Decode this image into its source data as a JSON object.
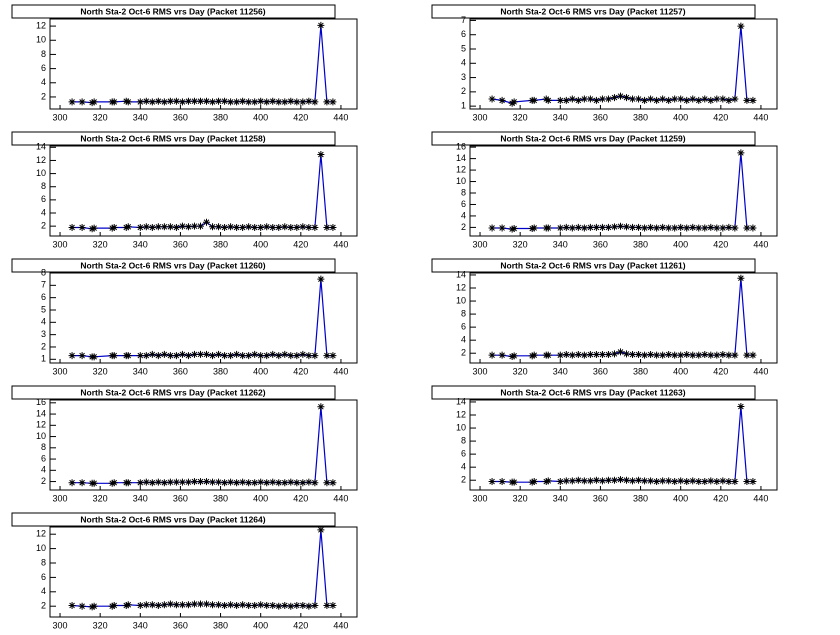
{
  "chart_data": [
    {
      "type": "line",
      "title": "North Sta-2 Oct-6 RMS vrs Day (Packet 11256)",
      "line_color": "#0000cc",
      "marker_color": "#000000",
      "x": [
        306,
        311,
        316,
        317,
        326,
        327,
        333,
        334,
        340,
        343,
        346,
        349,
        352,
        355,
        358,
        361,
        364,
        367,
        370,
        373,
        376,
        379,
        382,
        385,
        388,
        391,
        394,
        397,
        400,
        403,
        406,
        409,
        412,
        415,
        418,
        421,
        424,
        427,
        430,
        433,
        436
      ],
      "values": [
        1.3,
        1.3,
        1.2,
        1.3,
        1.3,
        1.3,
        1.4,
        1.3,
        1.3,
        1.4,
        1.3,
        1.4,
        1.3,
        1.4,
        1.4,
        1.3,
        1.4,
        1.4,
        1.4,
        1.4,
        1.3,
        1.4,
        1.4,
        1.3,
        1.3,
        1.4,
        1.3,
        1.3,
        1.4,
        1.3,
        1.4,
        1.3,
        1.3,
        1.4,
        1.3,
        1.3,
        1.4,
        1.3,
        12.1,
        1.3,
        1.3
      ],
      "xlim": [
        295,
        448
      ],
      "xticks": [
        300,
        320,
        340,
        360,
        380,
        400,
        420,
        440
      ],
      "ylim": [
        0.3,
        13
      ],
      "yticks": [
        2,
        4,
        6,
        8,
        10,
        12
      ]
    },
    {
      "type": "line",
      "title": "North Sta-2 Oct-6 RMS vrs Day (Packet 11257)",
      "line_color": "#0000cc",
      "marker_color": "#000000",
      "x": [
        306,
        311,
        316,
        317,
        326,
        327,
        333,
        334,
        340,
        343,
        346,
        349,
        352,
        355,
        358,
        361,
        364,
        367,
        370,
        373,
        376,
        379,
        382,
        385,
        388,
        391,
        394,
        397,
        400,
        403,
        406,
        409,
        412,
        415,
        418,
        421,
        424,
        427,
        430,
        433,
        436
      ],
      "values": [
        1.5,
        1.4,
        1.2,
        1.3,
        1.4,
        1.4,
        1.5,
        1.4,
        1.4,
        1.4,
        1.5,
        1.4,
        1.5,
        1.5,
        1.4,
        1.5,
        1.5,
        1.6,
        1.7,
        1.6,
        1.5,
        1.5,
        1.4,
        1.5,
        1.4,
        1.5,
        1.4,
        1.5,
        1.5,
        1.4,
        1.5,
        1.4,
        1.5,
        1.4,
        1.5,
        1.5,
        1.4,
        1.5,
        6.6,
        1.4,
        1.4
      ],
      "xlim": [
        295,
        448
      ],
      "xticks": [
        300,
        320,
        340,
        360,
        380,
        400,
        420,
        440
      ],
      "ylim": [
        0.8,
        7.1
      ],
      "yticks": [
        1,
        2,
        3,
        4,
        5,
        6,
        7
      ]
    },
    {
      "type": "line",
      "title": "North Sta-2 Oct-6 RMS vrs Day (Packet 11258)",
      "line_color": "#0000cc",
      "marker_color": "#000000",
      "x": [
        306,
        311,
        316,
        317,
        326,
        327,
        333,
        334,
        340,
        343,
        346,
        349,
        352,
        355,
        358,
        361,
        364,
        367,
        370,
        373,
        376,
        379,
        382,
        385,
        388,
        391,
        394,
        397,
        400,
        403,
        406,
        409,
        412,
        415,
        418,
        421,
        424,
        427,
        430,
        433,
        436
      ],
      "values": [
        1.8,
        1.8,
        1.6,
        1.7,
        1.7,
        1.8,
        1.8,
        1.9,
        1.8,
        1.9,
        1.8,
        1.9,
        1.9,
        1.9,
        1.8,
        2.0,
        1.9,
        2.0,
        2.0,
        2.6,
        1.9,
        1.9,
        1.8,
        1.9,
        1.8,
        1.8,
        1.9,
        1.8,
        1.8,
        1.9,
        1.8,
        1.8,
        1.9,
        1.8,
        1.8,
        1.9,
        1.8,
        1.8,
        12.9,
        1.8,
        1.8
      ],
      "xlim": [
        295,
        448
      ],
      "xticks": [
        300,
        320,
        340,
        360,
        380,
        400,
        420,
        440
      ],
      "ylim": [
        0.5,
        14.2
      ],
      "yticks": [
        2,
        4,
        6,
        8,
        10,
        12,
        14
      ]
    },
    {
      "type": "line",
      "title": "North Sta-2 Oct-6 RMS vrs Day (Packet 11259)",
      "line_color": "#0000cc",
      "marker_color": "#000000",
      "x": [
        306,
        311,
        316,
        317,
        326,
        327,
        333,
        334,
        340,
        343,
        346,
        349,
        352,
        355,
        358,
        361,
        364,
        367,
        370,
        373,
        376,
        379,
        382,
        385,
        388,
        391,
        394,
        397,
        400,
        403,
        406,
        409,
        412,
        415,
        418,
        421,
        424,
        427,
        430,
        433,
        436
      ],
      "values": [
        1.9,
        1.9,
        1.7,
        1.8,
        1.8,
        1.9,
        1.9,
        1.9,
        1.9,
        2.0,
        1.9,
        2.0,
        1.9,
        2.0,
        2.0,
        2.0,
        2.0,
        2.1,
        2.2,
        2.1,
        2.0,
        2.0,
        1.9,
        2.0,
        1.9,
        2.0,
        1.9,
        1.9,
        2.0,
        1.9,
        2.0,
        1.9,
        1.9,
        2.0,
        1.9,
        1.9,
        2.0,
        1.9,
        15.0,
        1.9,
        1.9
      ],
      "xlim": [
        295,
        448
      ],
      "xticks": [
        300,
        320,
        340,
        360,
        380,
        400,
        420,
        440
      ],
      "ylim": [
        0.5,
        16.2
      ],
      "yticks": [
        2,
        4,
        6,
        8,
        10,
        12,
        14,
        16
      ]
    },
    {
      "type": "line",
      "title": "North Sta-2 Oct-6 RMS vrs Day (Packet 11260)",
      "line_color": "#0000cc",
      "marker_color": "#000000",
      "x": [
        306,
        311,
        316,
        317,
        326,
        327,
        333,
        334,
        340,
        343,
        346,
        349,
        352,
        355,
        358,
        361,
        364,
        367,
        370,
        373,
        376,
        379,
        382,
        385,
        388,
        391,
        394,
        397,
        400,
        403,
        406,
        409,
        412,
        415,
        418,
        421,
        424,
        427,
        430,
        433,
        436
      ],
      "values": [
        1.3,
        1.3,
        1.2,
        1.2,
        1.3,
        1.3,
        1.3,
        1.3,
        1.3,
        1.3,
        1.4,
        1.3,
        1.4,
        1.3,
        1.3,
        1.4,
        1.3,
        1.4,
        1.4,
        1.4,
        1.3,
        1.4,
        1.3,
        1.3,
        1.4,
        1.3,
        1.3,
        1.4,
        1.3,
        1.3,
        1.4,
        1.3,
        1.4,
        1.3,
        1.3,
        1.4,
        1.3,
        1.3,
        7.5,
        1.3,
        1.3
      ],
      "xlim": [
        295,
        448
      ],
      "xticks": [
        300,
        320,
        340,
        360,
        380,
        400,
        420,
        440
      ],
      "ylim": [
        0.7,
        8
      ],
      "yticks": [
        1,
        2,
        3,
        4,
        5,
        6,
        7,
        8
      ]
    },
    {
      "type": "line",
      "title": "North Sta-2 Oct-6 RMS vrs Day (Packet 11261)",
      "line_color": "#0000cc",
      "marker_color": "#000000",
      "x": [
        306,
        311,
        316,
        317,
        326,
        327,
        333,
        334,
        340,
        343,
        346,
        349,
        352,
        355,
        358,
        361,
        364,
        367,
        370,
        373,
        376,
        379,
        382,
        385,
        388,
        391,
        394,
        397,
        400,
        403,
        406,
        409,
        412,
        415,
        418,
        421,
        424,
        427,
        430,
        433,
        436
      ],
      "values": [
        1.7,
        1.7,
        1.5,
        1.6,
        1.6,
        1.7,
        1.7,
        1.7,
        1.7,
        1.8,
        1.7,
        1.8,
        1.7,
        1.8,
        1.8,
        1.8,
        1.8,
        1.9,
        2.2,
        1.9,
        1.8,
        1.8,
        1.7,
        1.8,
        1.7,
        1.7,
        1.8,
        1.7,
        1.7,
        1.8,
        1.7,
        1.7,
        1.8,
        1.7,
        1.7,
        1.8,
        1.7,
        1.7,
        13.5,
        1.7,
        1.7
      ],
      "xlim": [
        295,
        448
      ],
      "xticks": [
        300,
        320,
        340,
        360,
        380,
        400,
        420,
        440
      ],
      "ylim": [
        0.5,
        14.3
      ],
      "yticks": [
        2,
        4,
        6,
        8,
        10,
        12,
        14
      ]
    },
    {
      "type": "line",
      "title": "North Sta-2 Oct-6 RMS vrs Day (Packet 11262)",
      "line_color": "#0000cc",
      "marker_color": "#000000",
      "x": [
        306,
        311,
        316,
        317,
        326,
        327,
        333,
        334,
        340,
        343,
        346,
        349,
        352,
        355,
        358,
        361,
        364,
        367,
        370,
        373,
        376,
        379,
        382,
        385,
        388,
        391,
        394,
        397,
        400,
        403,
        406,
        409,
        412,
        415,
        418,
        421,
        424,
        427,
        430,
        433,
        436
      ],
      "values": [
        1.8,
        1.8,
        1.7,
        1.7,
        1.7,
        1.8,
        1.8,
        1.8,
        1.8,
        1.9,
        1.8,
        1.9,
        1.8,
        1.9,
        1.9,
        1.9,
        1.9,
        2.0,
        2.0,
        2.0,
        1.9,
        1.9,
        1.8,
        1.9,
        1.8,
        1.9,
        1.8,
        1.8,
        1.9,
        1.8,
        1.9,
        1.8,
        1.8,
        1.9,
        1.8,
        1.8,
        1.9,
        1.8,
        15.3,
        1.8,
        1.8
      ],
      "xlim": [
        295,
        448
      ],
      "xticks": [
        300,
        320,
        340,
        360,
        380,
        400,
        420,
        440
      ],
      "ylim": [
        0.5,
        16.5
      ],
      "yticks": [
        2,
        4,
        6,
        8,
        10,
        12,
        14,
        16
      ]
    },
    {
      "type": "line",
      "title": "North Sta-2 Oct-6 RMS vrs Day (Packet 11263)",
      "line_color": "#0000cc",
      "marker_color": "#000000",
      "x": [
        306,
        311,
        316,
        317,
        326,
        327,
        333,
        334,
        340,
        343,
        346,
        349,
        352,
        355,
        358,
        361,
        364,
        367,
        370,
        373,
        376,
        379,
        382,
        385,
        388,
        391,
        394,
        397,
        400,
        403,
        406,
        409,
        412,
        415,
        418,
        421,
        424,
        427,
        430,
        433,
        436
      ],
      "values": [
        1.8,
        1.8,
        1.7,
        1.7,
        1.7,
        1.8,
        1.8,
        1.9,
        1.8,
        1.9,
        1.9,
        2.0,
        1.9,
        1.9,
        2.0,
        1.9,
        2.0,
        2.0,
        2.1,
        2.0,
        1.9,
        2.0,
        1.9,
        1.9,
        1.8,
        1.9,
        1.9,
        1.8,
        1.9,
        1.8,
        1.9,
        1.8,
        1.8,
        1.9,
        1.8,
        1.9,
        1.8,
        1.8,
        13.3,
        1.8,
        1.8
      ],
      "xlim": [
        295,
        448
      ],
      "xticks": [
        300,
        320,
        340,
        360,
        380,
        400,
        420,
        440
      ],
      "ylim": [
        0.5,
        14.3
      ],
      "yticks": [
        2,
        4,
        6,
        8,
        10,
        12,
        14
      ]
    },
    {
      "type": "line",
      "title": "North Sta-2 Oct-6 RMS vrs Day (Packet 11264)",
      "line_color": "#0000cc",
      "marker_color": "#000000",
      "x": [
        306,
        311,
        316,
        317,
        326,
        327,
        333,
        334,
        340,
        343,
        346,
        349,
        352,
        355,
        358,
        361,
        364,
        367,
        370,
        373,
        376,
        379,
        382,
        385,
        388,
        391,
        394,
        397,
        400,
        403,
        406,
        409,
        412,
        415,
        418,
        421,
        424,
        427,
        430,
        433,
        436
      ],
      "values": [
        2.1,
        2.0,
        1.9,
        2.0,
        2.0,
        2.1,
        2.1,
        2.2,
        2.1,
        2.2,
        2.2,
        2.1,
        2.2,
        2.3,
        2.2,
        2.2,
        2.2,
        2.3,
        2.3,
        2.3,
        2.2,
        2.2,
        2.1,
        2.2,
        2.1,
        2.2,
        2.1,
        2.1,
        2.2,
        2.1,
        2.1,
        2.0,
        2.1,
        2.0,
        2.1,
        2.1,
        2.0,
        2.1,
        12.6,
        2.1,
        2.1
      ],
      "xlim": [
        295,
        448
      ],
      "xticks": [
        300,
        320,
        340,
        360,
        380,
        400,
        420,
        440
      ],
      "ylim": [
        0.5,
        13
      ],
      "yticks": [
        2,
        4,
        6,
        8,
        10,
        12
      ]
    }
  ]
}
